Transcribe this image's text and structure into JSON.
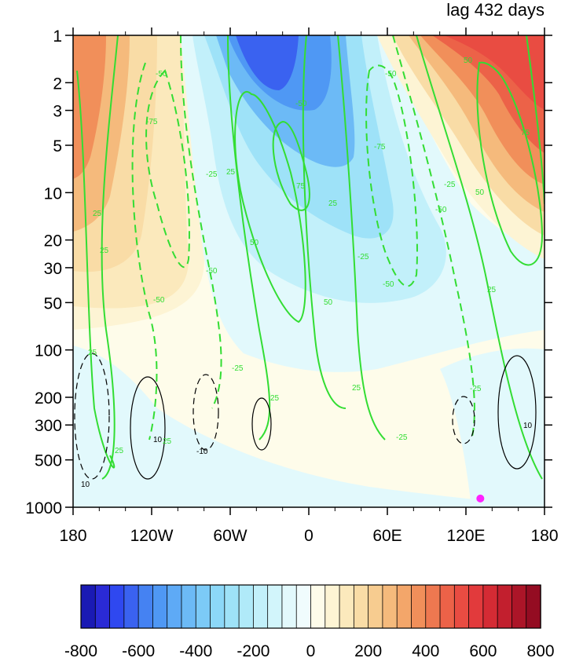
{
  "title": "lag 432 days",
  "chart_data": {
    "type": "heatmap",
    "title": "lag 432 days",
    "xlabel": "",
    "ylabel": "",
    "x_range": [
      -180,
      180
    ],
    "x_ticks": [
      {
        "value": -180,
        "label": "180"
      },
      {
        "value": -120,
        "label": "120W"
      },
      {
        "value": -60,
        "label": "60W"
      },
      {
        "value": 0,
        "label": "0"
      },
      {
        "value": 60,
        "label": "60E"
      },
      {
        "value": 120,
        "label": "120E"
      },
      {
        "value": 180,
        "label": "180"
      }
    ],
    "y_scale": "log",
    "y_reversed": true,
    "y_range": [
      1000,
      1
    ],
    "y_ticks": [
      1,
      2,
      3,
      5,
      10,
      20,
      30,
      50,
      100,
      200,
      300,
      500,
      1000
    ],
    "y_tick_labels": [
      "1",
      "2",
      "3",
      "5",
      "10",
      "20",
      "30",
      "50",
      "100",
      "200",
      "300",
      "500",
      "1000"
    ],
    "colorbar": {
      "levels": [
        -800,
        -750,
        -700,
        -650,
        -600,
        -550,
        -500,
        -450,
        -400,
        -350,
        -300,
        -250,
        -200,
        -150,
        -100,
        -50,
        0,
        50,
        100,
        150,
        200,
        250,
        300,
        350,
        400,
        450,
        500,
        550,
        600,
        650,
        700,
        750,
        800
      ],
      "labels": [
        "-800",
        "-600",
        "-400",
        "-200",
        "0",
        "200",
        "400",
        "600",
        "800"
      ],
      "label_values": [
        -800,
        -600,
        -400,
        -200,
        0,
        200,
        400,
        600,
        800
      ],
      "colors": [
        "#1a1ab4",
        "#2a2ad6",
        "#2f48f0",
        "#3a62f0",
        "#4582f2",
        "#4f98f4",
        "#5eaaf6",
        "#6cbaf6",
        "#7ccaf7",
        "#8cd8f8",
        "#9ee2f8",
        "#b0eaf9",
        "#c2f0fa",
        "#d2f5fb",
        "#e2f9fc",
        "#f0fcfd",
        "#fefcea",
        "#fdf4d4",
        "#fbe9bc",
        "#f9dca6",
        "#f7cc90",
        "#f5ba7c",
        "#f3a66a",
        "#f18f5a",
        "#ee7850",
        "#ec6248",
        "#e94c42",
        "#e23a3c",
        "#d42b34",
        "#c21f2e",
        "#ac1528",
        "#940c22"
      ]
    },
    "shaded_field_regions": [
      {
        "value": -550,
        "description": "strong negative core near 30W-10W, 1-3 hPa"
      },
      {
        "value": -300,
        "description": "negative lobe 90W-60E above 30 hPa"
      },
      {
        "value": -50,
        "description": "weak negative over 60W-60E, 10-100 hPa"
      },
      {
        "value": 650,
        "description": "strong positive core near 130E-170E, 1-5 hPa"
      },
      {
        "value": 450,
        "description": "positive near 180-160W, 1-10 hPa"
      },
      {
        "value": 150,
        "description": "weak positive 180-100W, 20-70 hPa"
      },
      {
        "value": -30,
        "description": "weak negative in lower troposphere 180-120W and 120E-180"
      }
    ],
    "contour_levels": {
      "green_solid": [
        25,
        50,
        75
      ],
      "green_dashed": [
        -25,
        -50,
        -75
      ],
      "black_solid": [
        10
      ],
      "black_dashed": [
        -10
      ]
    },
    "contour_labels_visible": [
      "25",
      "50",
      "75",
      "-25",
      "-50",
      "-75",
      "10",
      "-10"
    ],
    "marker": {
      "lon": 131,
      "pressure": 880,
      "color": "#ff22ff"
    },
    "grid": false,
    "legend": "colorbar at bottom"
  }
}
